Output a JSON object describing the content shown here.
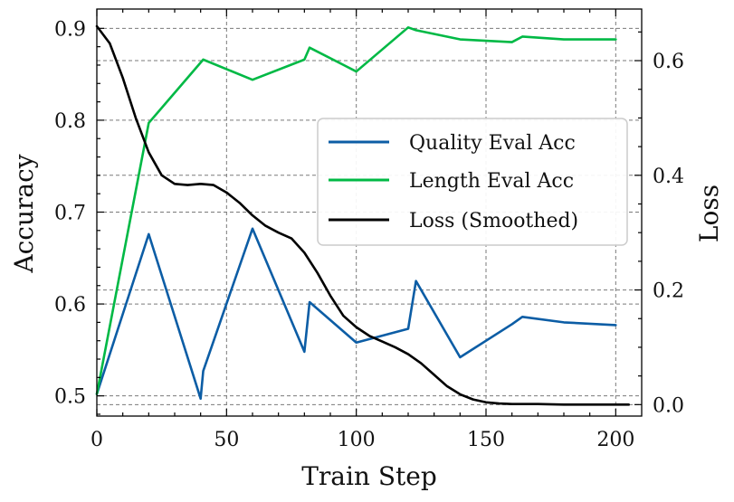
{
  "chart_data": {
    "type": "line",
    "xlabel": "Train Step",
    "ylabel": "Accuracy",
    "y2label": "Loss",
    "xlim": [
      0,
      210
    ],
    "ylim": [
      0.478,
      0.921
    ],
    "y2lim": [
      -0.02,
      0.69
    ],
    "xticks": [
      0,
      50,
      100,
      150,
      200
    ],
    "xtick_labels": [
      "0",
      "50",
      "100",
      "150",
      "200"
    ],
    "yticks": [
      0.5,
      0.6,
      0.7,
      0.8,
      0.9
    ],
    "ytick_labels": [
      "0.5",
      "0.6",
      "0.7",
      "0.8",
      "0.9"
    ],
    "y2ticks": [
      0.0,
      0.2,
      0.4,
      0.6
    ],
    "y2tick_labels": [
      "0.0",
      "0.2",
      "0.4",
      "0.6"
    ],
    "grid": true,
    "legend_position": "center-right",
    "series": [
      {
        "name": "Quality Eval Acc",
        "axis": "left",
        "color": "#0C5DA5",
        "x": [
          0,
          20,
          40,
          41,
          60,
          80,
          82,
          100,
          120,
          123,
          140,
          160,
          164,
          180,
          200
        ],
        "y": [
          0.502,
          0.676,
          0.497,
          0.527,
          0.682,
          0.548,
          0.602,
          0.558,
          0.573,
          0.625,
          0.542,
          0.578,
          0.586,
          0.58,
          0.577
        ]
      },
      {
        "name": "Length Eval Acc",
        "axis": "left",
        "color": "#00B945",
        "x": [
          0,
          20,
          41,
          60,
          80,
          82,
          100,
          120,
          123,
          140,
          160,
          164,
          180,
          200
        ],
        "y": [
          0.502,
          0.797,
          0.866,
          0.844,
          0.866,
          0.879,
          0.853,
          0.901,
          0.898,
          0.888,
          0.885,
          0.891,
          0.888,
          0.888
        ]
      },
      {
        "name": "Loss (Smoothed)",
        "axis": "right",
        "color": "#000000",
        "x": [
          0,
          5,
          10,
          15,
          20,
          25,
          30,
          35,
          40,
          45,
          50,
          55,
          60,
          65,
          70,
          75,
          80,
          85,
          90,
          95,
          100,
          105,
          110,
          115,
          120,
          125,
          130,
          135,
          140,
          145,
          150,
          155,
          160,
          170,
          180,
          190,
          200,
          205
        ],
        "y": [
          0.66,
          0.63,
          0.57,
          0.5,
          0.44,
          0.4,
          0.385,
          0.383,
          0.385,
          0.383,
          0.37,
          0.352,
          0.33,
          0.312,
          0.3,
          0.29,
          0.265,
          0.23,
          0.19,
          0.155,
          0.135,
          0.12,
          0.11,
          0.1,
          0.088,
          0.072,
          0.052,
          0.032,
          0.018,
          0.009,
          0.004,
          0.002,
          0.001,
          0.001,
          0.0,
          0.0,
          0.0,
          0.0
        ]
      }
    ]
  }
}
